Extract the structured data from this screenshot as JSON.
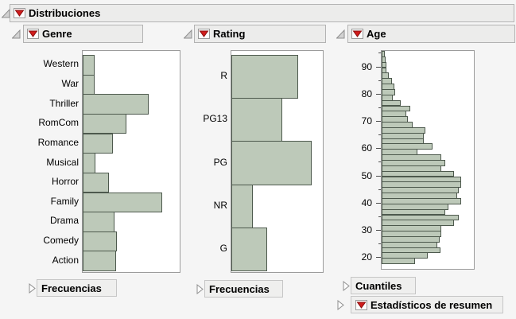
{
  "report": {
    "title": "Distribuciones"
  },
  "panels": [
    {
      "title": "Genre",
      "footers": [
        {
          "label": "Frecuencias",
          "red_triangle": false
        }
      ]
    },
    {
      "title": "Rating",
      "footers": [
        {
          "label": "Frecuencias",
          "red_triangle": false
        }
      ]
    },
    {
      "title": "Age",
      "footers": [
        {
          "label": "Cuantiles",
          "red_triangle": false
        },
        {
          "label": "Estadísticos de resumen",
          "red_triangle": true
        }
      ]
    }
  ],
  "icons": {
    "red-triangle-menu-icon": "red ▼ in white box",
    "disclosure-open-icon": "gray ◢",
    "disclosure-closed-icon": "white ▷ outline"
  },
  "colors": {
    "bar_fill": "#bdc9b9",
    "bar_border": "#4d594d",
    "accent_red": "#d11c1c",
    "header_bg": "#ececeb",
    "header_border": "#b3b3b3",
    "frame_border": "#9c9c9c",
    "page_bg": "#f5f5f5"
  },
  "chart_data": [
    {
      "type": "bar",
      "orientation": "horizontal",
      "title": "Genre",
      "categories": [
        "Western",
        "War",
        "Thriller",
        "RomCom",
        "Romance",
        "Musical",
        "Horror",
        "Family",
        "Drama",
        "Comedy",
        "Action"
      ],
      "values": [
        0.12,
        0.12,
        0.68,
        0.45,
        0.31,
        0.13,
        0.27,
        0.82,
        0.33,
        0.35,
        0.34
      ],
      "value_note": "relative bar length, fraction of plot width (no numeric axis shown)",
      "xlabel": "",
      "ylabel": "",
      "grid": false,
      "legend": "none",
      "xlim": [
        0,
        1
      ]
    },
    {
      "type": "bar",
      "orientation": "horizontal",
      "title": "Rating",
      "categories": [
        "R",
        "PG13",
        "PG",
        "NR",
        "G"
      ],
      "values": [
        0.73,
        0.56,
        0.88,
        0.23,
        0.39
      ],
      "value_note": "relative bar length, fraction of plot width (no numeric axis shown)",
      "xlabel": "",
      "ylabel": "",
      "grid": false,
      "legend": "none",
      "xlim": [
        0,
        1
      ]
    },
    {
      "type": "bar",
      "subtype": "histogram",
      "orientation": "horizontal",
      "title": "Age",
      "bin_width": 2,
      "bin_starts": [
        18,
        20,
        22,
        24,
        26,
        28,
        30,
        32,
        34,
        36,
        38,
        40,
        42,
        44,
        46,
        48,
        50,
        52,
        54,
        56,
        58,
        60,
        62,
        64,
        66,
        68,
        70,
        72,
        74,
        76,
        78,
        80,
        82,
        84,
        86,
        88,
        90,
        92,
        94
      ],
      "values": [
        0.36,
        0.5,
        0.64,
        0.6,
        0.63,
        0.65,
        0.65,
        0.78,
        0.84,
        0.69,
        0.72,
        0.86,
        0.82,
        0.84,
        0.86,
        0.86,
        0.78,
        0.65,
        0.69,
        0.65,
        0.39,
        0.55,
        0.46,
        0.46,
        0.47,
        0.34,
        0.28,
        0.27,
        0.31,
        0.21,
        0.12,
        0.15,
        0.14,
        0.11,
        0.08,
        0.05,
        0.05,
        0.04,
        0.03
      ],
      "value_note": "relative bar length, fraction of plot width (no numeric axis shown)",
      "axis": {
        "min": 16,
        "max": 96,
        "major_ticks": [
          20,
          30,
          40,
          50,
          60,
          70,
          80,
          90
        ],
        "minor_ticks": [
          25,
          35,
          45,
          55,
          65,
          75,
          85,
          95
        ]
      },
      "xlabel": "",
      "ylabel": "",
      "grid": false,
      "legend": "none"
    }
  ]
}
